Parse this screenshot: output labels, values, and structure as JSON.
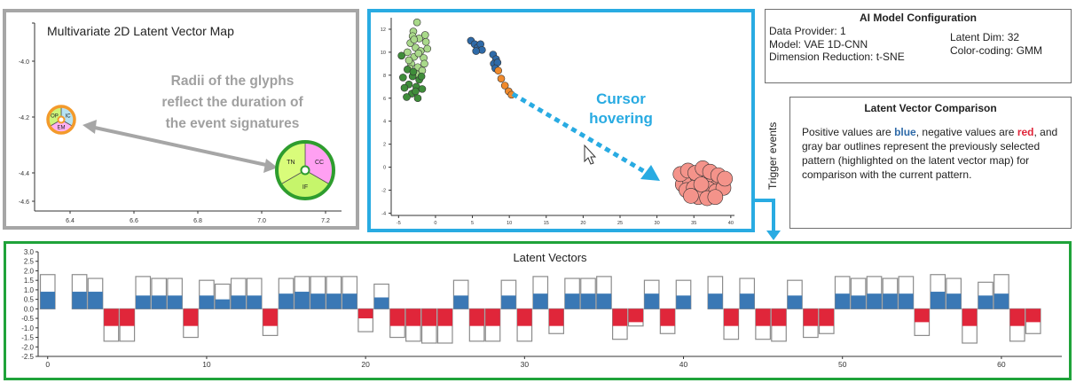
{
  "glyph_map": {
    "title": "Multivariate 2D Latent Vector Map",
    "annotation_lines": [
      "Radii of the glyphs",
      "reflect the duration of",
      "the event signatures"
    ],
    "x_ticks": [
      "6.4",
      "6.6",
      "6.8",
      "7.0",
      "7.2"
    ],
    "y_ticks": [
      "-4.0",
      "-4.2",
      "-4.4",
      "-4.6"
    ],
    "glyph_small": {
      "segments": [
        "IC",
        "EM",
        "OP"
      ],
      "colors": [
        "#b7e2f2",
        "#ffb0f2",
        "#ccf57a"
      ],
      "ring_color": "#f39a2b"
    },
    "glyph_large": {
      "segments": [
        "CC",
        "IF",
        "TN"
      ],
      "colors": [
        "#ffa0f2",
        "#c6f56b",
        "#d9fc7a"
      ],
      "ring_color": "#2e9d2e"
    }
  },
  "scatter": {
    "annotation_lines": [
      "Cursor",
      "hovering"
    ],
    "annotation_color": "#29abe2",
    "x_ticks": [
      "-5",
      "0",
      "5",
      "10",
      "15",
      "20",
      "25",
      "30",
      "35",
      "40"
    ],
    "y_ticks": [
      "12",
      "10",
      "8",
      "6",
      "4",
      "2",
      "0",
      "-2",
      "-4"
    ],
    "xlim": [
      -6,
      40.5
    ],
    "ylim": [
      -4.2,
      13
    ],
    "clusters": [
      {
        "name_color": "#a9d98a",
        "points": [
          [
            -2.5,
            12.6
          ],
          [
            -3,
            11.8
          ],
          [
            -2.2,
            11.2
          ],
          [
            -1.4,
            11.5
          ],
          [
            -3.4,
            10.8
          ],
          [
            -2.7,
            10.4
          ],
          [
            -2,
            10.1
          ],
          [
            -1.3,
            10.9
          ],
          [
            -3.8,
            10
          ],
          [
            -2.9,
            9.6
          ],
          [
            -1.6,
            9.5
          ],
          [
            -3.3,
            9
          ],
          [
            -2.4,
            8.7
          ],
          [
            -1.8,
            8.4
          ],
          [
            -3.1,
            11.4
          ],
          [
            -1.1,
            10.3
          ],
          [
            -3.6,
            9.3
          ],
          [
            -2.6,
            8.1
          ],
          [
            -1.5,
            9
          ],
          [
            -3.5,
            8.6
          ],
          [
            -2.3,
            9.9
          ],
          [
            -2.9,
            11.1
          ]
        ]
      },
      {
        "name_color": "#3f8d3a",
        "points": [
          [
            -4.6,
            9.7
          ],
          [
            -3.8,
            8.5
          ],
          [
            -3.1,
            7.9
          ],
          [
            -2.2,
            7.6
          ],
          [
            -3.6,
            7.2
          ],
          [
            -2.6,
            7
          ],
          [
            -1.8,
            6.8
          ],
          [
            -3.2,
            6.4
          ],
          [
            -2.4,
            6
          ],
          [
            -4.2,
            6.9
          ],
          [
            -1.9,
            7.9
          ],
          [
            -3,
            8.3
          ],
          [
            -4.4,
            7.8
          ],
          [
            -2.7,
            6.6
          ],
          [
            -3.9,
            6.1
          ]
        ]
      },
      {
        "name_color": "#2e6aa8",
        "points": [
          [
            4.8,
            11
          ],
          [
            5.3,
            10.7
          ],
          [
            5.7,
            10.4
          ],
          [
            6.1,
            10.7
          ],
          [
            6.3,
            10.2
          ],
          [
            5.5,
            10.1
          ],
          [
            7.8,
            9.8
          ],
          [
            8.2,
            9.4
          ],
          [
            7.9,
            9
          ],
          [
            8.4,
            9.1
          ],
          [
            8.1,
            8.6
          ]
        ]
      },
      {
        "name_color": "#f08a2c",
        "points": [
          [
            8.5,
            8.4
          ],
          [
            8.9,
            7.7
          ],
          [
            9.4,
            7.1
          ],
          [
            9.9,
            6.6
          ],
          [
            10.3,
            6.3
          ]
        ]
      },
      {
        "name_color": "#f4938a",
        "points": [
          [
            33.5,
            -1.5
          ],
          [
            34.5,
            -1.2
          ],
          [
            35.5,
            -0.8
          ],
          [
            36.5,
            -1.3
          ],
          [
            37.5,
            -1
          ],
          [
            38.4,
            -1.5
          ],
          [
            34,
            -2
          ],
          [
            35,
            -1.8
          ],
          [
            36,
            -2.2
          ],
          [
            37,
            -1.9
          ],
          [
            38,
            -2.1
          ],
          [
            39,
            -1.8
          ],
          [
            33.2,
            -0.6
          ],
          [
            34.2,
            -0.3
          ],
          [
            35.2,
            -0.5
          ],
          [
            36.2,
            -0.1
          ],
          [
            37.2,
            -0.4
          ],
          [
            38.3,
            -0.7
          ],
          [
            35.6,
            -2.6
          ],
          [
            36.8,
            -2.7
          ],
          [
            34.6,
            -2.5
          ],
          [
            37.9,
            -2.6
          ],
          [
            36,
            -1.5
          ],
          [
            39.2,
            -1
          ]
        ]
      }
    ]
  },
  "config": {
    "title": "AI Model Configuration",
    "left_lines": [
      "Data Provider: 1",
      "Model: VAE 1D-CNN",
      "Dimension Reduction: t-SNE"
    ],
    "right_lines": [
      "Latent Dim: 32",
      "Color-coding: GMM"
    ]
  },
  "comparison": {
    "title": "Latent Vector Comparison",
    "blue_word": "blue",
    "red_word": "red",
    "text_a": "Positive values are ",
    "text_b": ", negative values are ",
    "text_c": ", and gray bar outlines represent the previously selected pattern (highlighted on the latent vector map) for comparison with the current pattern.",
    "blue_color": "#2e6aa8",
    "red_color": "#e0263a"
  },
  "trigger_label": "Trigger events",
  "chart_data": {
    "type": "bar",
    "title": "Latent Vectors",
    "x_ticks": [
      "0",
      "10",
      "20",
      "30",
      "40",
      "50",
      "60"
    ],
    "y_ticks": [
      "3.0",
      "2.5",
      "2.0",
      "1.5",
      "1.0",
      "0.5",
      "0.0",
      "-0.5",
      "-1.0",
      "-1.5",
      "-2.0",
      "-2.5"
    ],
    "ylim": [
      -2.5,
      3.0
    ],
    "xlim": [
      -0.6,
      63.8
    ],
    "current_values": [
      0.9,
      0,
      0.9,
      0.9,
      -0.9,
      -0.9,
      0.7,
      0.7,
      0.7,
      -0.9,
      0.7,
      0.5,
      0.7,
      0.7,
      -0.9,
      0.8,
      0.9,
      0.8,
      0.8,
      0.8,
      -0.5,
      0.6,
      -0.9,
      -0.9,
      -0.9,
      -0.9,
      0.7,
      -0.9,
      -0.9,
      0.7,
      -0.9,
      0.8,
      -0.9,
      0.8,
      0.8,
      0.8,
      -0.9,
      -0.7,
      0.8,
      -0.9,
      0.7,
      0,
      0.8,
      -0.9,
      0.8,
      -0.9,
      -0.9,
      0.7,
      -0.9,
      -0.9,
      0.8,
      0.7,
      0.8,
      0.8,
      0.8,
      -0.7,
      0.9,
      0.8,
      -0.9,
      0.7,
      0.8,
      -0.9,
      -0.7
    ],
    "previous_values": [
      1.8,
      0,
      1.8,
      1.6,
      -1.7,
      -1.7,
      1.7,
      1.6,
      1.6,
      -1.5,
      1.5,
      1.3,
      1.6,
      1.6,
      -1.4,
      1.6,
      1.7,
      1.7,
      1.7,
      1.7,
      -1.2,
      1.3,
      -1.5,
      -1.7,
      -1.8,
      -1.8,
      1.5,
      -1.7,
      -1.7,
      1.5,
      -1.7,
      1.7,
      -1.3,
      1.6,
      1.6,
      1.7,
      -1.6,
      -0.9,
      1.5,
      -1.3,
      1.5,
      0,
      1.7,
      -1.6,
      1.6,
      -1.6,
      -1.7,
      1.5,
      -1.5,
      -1.3,
      1.7,
      1.6,
      1.7,
      1.6,
      1.7,
      -1.4,
      1.8,
      1.6,
      -1.8,
      1.4,
      1.8,
      -1.7,
      -1.3
    ],
    "positive_color": "#3a78b5",
    "negative_color": "#e0263a",
    "outline_color": "#8c8c8c"
  }
}
